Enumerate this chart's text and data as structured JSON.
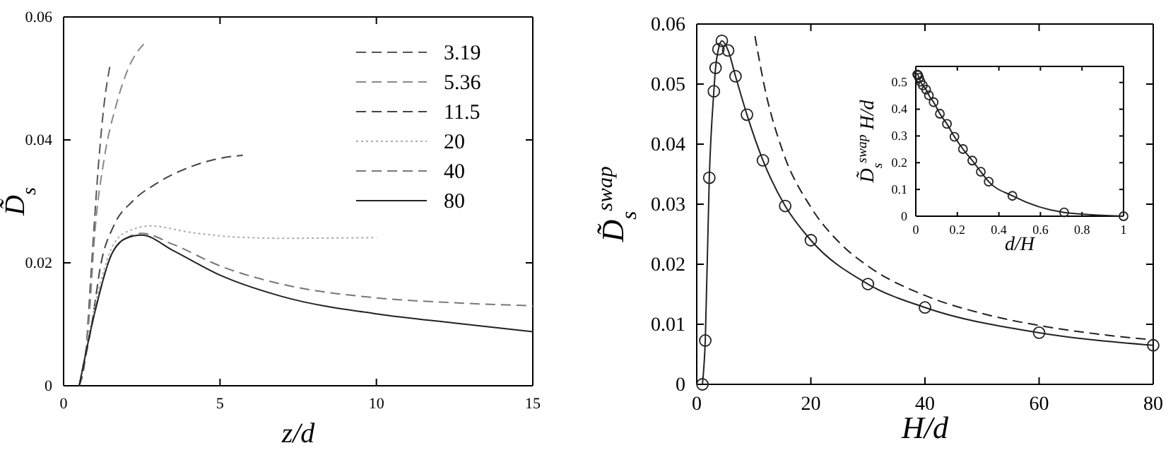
{
  "chart_data": [
    {
      "type": "line",
      "xlabel": "z/d",
      "ylabel": "D̃$_{s}$",
      "xlim": [
        0,
        15
      ],
      "ylim": [
        0,
        0.06
      ],
      "xticks": [
        0,
        5,
        10,
        15
      ],
      "yticks": [
        0,
        0.02,
        0.04,
        0.06
      ],
      "grid": false,
      "legend": "top right",
      "series": [
        {
          "name": "3.19",
          "color": "#555555",
          "line_style": "dashed",
          "x": [
            0.5,
            0.7,
            0.9,
            1.1,
            1.3,
            1.48
          ],
          "values": [
            0,
            0.005,
            0.02,
            0.035,
            0.046,
            0.052
          ]
        },
        {
          "name": "5.36",
          "color": "#888888",
          "line_style": "dashed",
          "x": [
            0.5,
            0.8,
            1.0,
            1.3,
            1.7,
            2.1,
            2.56
          ],
          "values": [
            0,
            0.01,
            0.025,
            0.037,
            0.046,
            0.052,
            0.0556
          ]
        },
        {
          "name": "11.5",
          "color": "#444444",
          "line_style": "dashed",
          "x": [
            0.5,
            0.9,
            1.2,
            1.6,
            2.2,
            3,
            4,
            5,
            5.73
          ],
          "values": [
            0,
            0.01,
            0.02,
            0.026,
            0.03,
            0.033,
            0.0355,
            0.037,
            0.0375
          ]
        },
        {
          "name": "20",
          "color": "#aaaaaa",
          "line_style": "dotted",
          "x": [
            0.5,
            1,
            1.5,
            2,
            2.8,
            4,
            5.5,
            7,
            10
          ],
          "values": [
            0,
            0.013,
            0.022,
            0.025,
            0.026,
            0.025,
            0.0242,
            0.024,
            0.0241
          ]
        },
        {
          "name": "40",
          "color": "#777777",
          "line_style": "dashed",
          "x": [
            0.5,
            1,
            1.5,
            2,
            2.5,
            3.5,
            5,
            7,
            10,
            12.5,
            15
          ],
          "values": [
            0,
            0.012,
            0.021,
            0.024,
            0.0248,
            0.023,
            0.0195,
            0.0165,
            0.0143,
            0.0135,
            0.013
          ]
        },
        {
          "name": "80",
          "color": "#222222",
          "line_style": "solid",
          "x": [
            0.5,
            1,
            1.5,
            2,
            2.5,
            3.5,
            5,
            7,
            10,
            12.5,
            15
          ],
          "values": [
            0,
            0.012,
            0.021,
            0.024,
            0.0245,
            0.022,
            0.018,
            0.0145,
            0.0117,
            0.0102,
            0.0088
          ]
        }
      ]
    },
    {
      "type": "line",
      "xlabel": "H/d",
      "ylabel": "D̃$_{s}$$^{swap}$",
      "xlim": [
        0,
        80
      ],
      "ylim": [
        0,
        0.06
      ],
      "xticks": [
        0,
        20,
        40,
        60,
        80
      ],
      "yticks": [
        0,
        0.01,
        0.02,
        0.03,
        0.04,
        0.05,
        0.06
      ],
      "grid": false,
      "series": [
        {
          "color": "#222222",
          "line_style": "solid",
          "marker": "circle",
          "x": [
            1,
            1.5,
            2.2,
            3,
            3.3,
            3.8,
            4.4,
            5.5,
            6.8,
            8.8,
            11.6,
            15.5,
            20,
            30,
            40,
            60,
            80
          ],
          "values": [
            0,
            0.0073,
            0.0344,
            0.0488,
            0.0527,
            0.0558,
            0.0572,
            0.0556,
            0.0513,
            0.0449,
            0.0373,
            0.0297,
            0.024,
            0.0167,
            0.0128,
            0.0086,
            0.0065
          ]
        },
        {
          "color": "#222222",
          "line_style": "dashed",
          "marker": "none",
          "x": [
            10.2,
            12,
            15,
            20,
            25,
            30,
            40,
            50,
            60,
            70,
            80
          ],
          "values": [
            0.058,
            0.049,
            0.039,
            0.0295,
            0.0236,
            0.0197,
            0.0148,
            0.0118,
            0.0098,
            0.0084,
            0.0074
          ]
        }
      ]
    },
    {
      "type": "line",
      "xlabel": "d/H",
      "ylabel": "D̃$_{s}$$^{swap}$ H/d",
      "xlim": [
        0,
        1
      ],
      "ylim": [
        0,
        0.56
      ],
      "xticks": [
        0,
        0.2,
        0.4,
        0.6,
        0.8,
        1
      ],
      "yticks": [
        0,
        0.1,
        0.2,
        0.3,
        0.4,
        0.5
      ],
      "grid": false,
      "series": [
        {
          "color": "#222222",
          "line_style": "solid",
          "marker": "circle",
          "x": [
            0.007,
            0.011,
            0.016,
            0.023,
            0.034,
            0.05,
            0.063,
            0.086,
            0.116,
            0.15,
            0.186,
            0.227,
            0.272,
            0.313,
            0.351,
            0.465,
            0.714,
            1
          ],
          "values": [
            0.53,
            0.527,
            0.518,
            0.503,
            0.489,
            0.473,
            0.452,
            0.426,
            0.383,
            0.345,
            0.297,
            0.251,
            0.208,
            0.166,
            0.129,
            0.076,
            0.014,
            0
          ]
        }
      ]
    }
  ]
}
